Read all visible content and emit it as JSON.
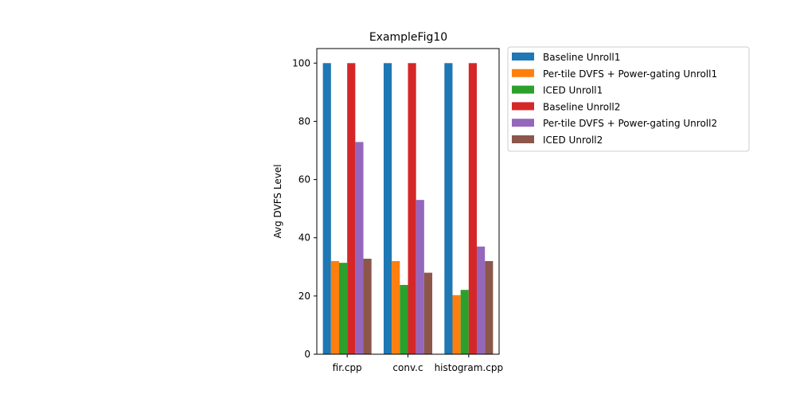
{
  "chart_data": {
    "type": "bar",
    "title": "ExampleFig10",
    "xlabel": "",
    "ylabel": "Avg DVFS Level",
    "categories": [
      "fir.cpp",
      "conv.c",
      "histogram.cpp"
    ],
    "ylim": [
      0,
      105
    ],
    "yticks": [
      0,
      20,
      40,
      60,
      80,
      100
    ],
    "grid": false,
    "legend_position": "outside right, top",
    "series": [
      {
        "name": "Baseline Unroll1",
        "color": "#1f77b4",
        "values": [
          100,
          100,
          100
        ]
      },
      {
        "name": "Per-tile DVFS + Power-gating Unroll1",
        "color": "#ff7f0e",
        "values": [
          32,
          32,
          20.3
        ]
      },
      {
        "name": "ICED Unroll1",
        "color": "#2ca02c",
        "values": [
          31.4,
          23.8,
          22.1
        ]
      },
      {
        "name": "Baseline Unroll2",
        "color": "#d62728",
        "values": [
          100,
          100,
          100
        ]
      },
      {
        "name": "Per-tile DVFS + Power-gating Unroll2",
        "color": "#9467bd",
        "values": [
          72.9,
          53,
          37
        ]
      },
      {
        "name": "ICED Unroll2",
        "color": "#8c564b",
        "values": [
          32.8,
          28,
          32
        ]
      }
    ]
  }
}
